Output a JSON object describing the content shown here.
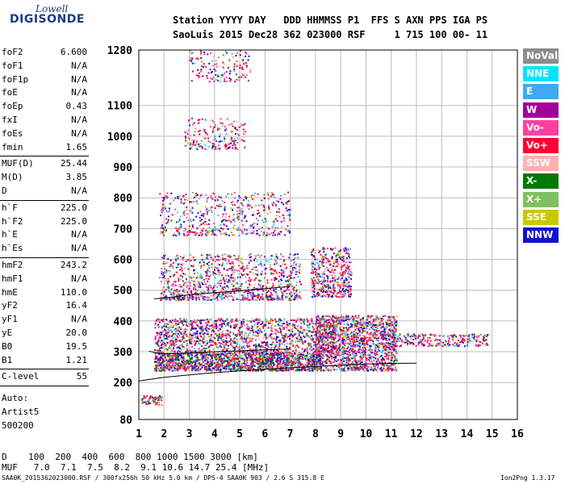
{
  "logo": {
    "line1": "Lowell",
    "line2": "DIGISONDE"
  },
  "header": {
    "row1": "Station YYYY DAY   DDD HHMMSS P1  FFS S AXN PPS IGA PS",
    "row2": "SaoLuis 2015 Dec28 362 023000 RSF     1 715 100 00- 11"
  },
  "params_a": [
    {
      "k": "foF2",
      "v": "6.600"
    },
    {
      "k": "foF1",
      "v": "N/A"
    },
    {
      "k": "foF1p",
      "v": "N/A"
    },
    {
      "k": "foE",
      "v": "N/A"
    },
    {
      "k": "foEp",
      "v": "0.43"
    },
    {
      "k": "fxI",
      "v": "N/A"
    },
    {
      "k": "foEs",
      "v": "N/A"
    },
    {
      "k": "fmin",
      "v": "1.65"
    }
  ],
  "params_b": [
    {
      "k": "MUF(D)",
      "v": "25.44"
    },
    {
      "k": "M(D)",
      "v": "3.85"
    },
    {
      "k": "D",
      "v": "N/A"
    }
  ],
  "params_c": [
    {
      "k": "h`F",
      "v": "225.0"
    },
    {
      "k": "h`F2",
      "v": "225.0"
    },
    {
      "k": "h`E",
      "v": "N/A"
    },
    {
      "k": "h`Es",
      "v": "N/A"
    }
  ],
  "params_d": [
    {
      "k": "hmF2",
      "v": "243.2"
    },
    {
      "k": "hmF1",
      "v": "N/A"
    },
    {
      "k": "hmE",
      "v": "110.0"
    },
    {
      "k": "yF2",
      "v": "16.4"
    },
    {
      "k": "yF1",
      "v": "N/A"
    },
    {
      "k": "yE",
      "v": "20.0"
    },
    {
      "k": "B0",
      "v": "19.5"
    },
    {
      "k": "B1",
      "v": "1.21"
    }
  ],
  "params_e": [
    {
      "k": "C-level",
      "v": "55"
    }
  ],
  "auto": [
    "Auto:",
    "Artist5",
    "500200"
  ],
  "legend": [
    {
      "label": "NoVal",
      "color": "#8c8c8c"
    },
    {
      "label": "NNE",
      "color": "#00e5ff"
    },
    {
      "label": "E",
      "color": "#3fa9f5"
    },
    {
      "label": "W",
      "color": "#a0009a"
    },
    {
      "label": "Vo-",
      "color": "#ff3fa0"
    },
    {
      "label": "Vo+",
      "color": "#ff0030"
    },
    {
      "label": "SSW",
      "color": "#ffb0b0"
    },
    {
      "label": "X-",
      "color": "#007a00"
    },
    {
      "label": "X+",
      "color": "#80c060"
    },
    {
      "label": "SSE",
      "color": "#c8c800"
    },
    {
      "label": "NNW",
      "color": "#1010d0"
    }
  ],
  "bottom": {
    "d_row": "D    100  200  400  600  800 1000 1500 3000 [km]",
    "muf_row": "MUF   7.0  7.1  7.5  8.2  9.1 10.6 14.7 25.4 [MHz]"
  },
  "footer": {
    "left": "SAA0K_2015362023000.RSF / 300fx256h 50 kHz 5.0 km / DPS-4 SAA0K 903 / 2.6 S 315.8 E",
    "right": "Ion2Png 1.3.17"
  },
  "chart_data": {
    "type": "scatter",
    "title": "",
    "xlabel": "",
    "ylabel": "",
    "xlim": [
      1,
      16
    ],
    "ylim": [
      80,
      1280
    ],
    "x_ticks": [
      1,
      2,
      3,
      4,
      5,
      6,
      7,
      8,
      9,
      10,
      11,
      12,
      13,
      14,
      15,
      16
    ],
    "y_ticks": [
      80,
      200,
      300,
      400,
      500,
      600,
      700,
      800,
      900,
      1000,
      1100,
      1280
    ],
    "grid": true,
    "legend_position": "right",
    "trace_curves": [
      {
        "name": "",
        "points": [
          [
            1,
            205
          ],
          [
            2,
            217
          ],
          [
            3,
            225
          ],
          [
            4,
            232
          ],
          [
            5,
            238
          ],
          [
            6,
            243
          ],
          [
            7,
            248
          ],
          [
            8,
            252
          ],
          [
            9,
            256
          ],
          [
            10,
            260
          ],
          [
            11,
            262
          ],
          [
            12,
            263
          ]
        ]
      },
      {
        "name": "",
        "points": [
          [
            1.4,
            302
          ],
          [
            1.7,
            296
          ],
          [
            2,
            293
          ],
          [
            3,
            296
          ],
          [
            4,
            300
          ],
          [
            5,
            303
          ],
          [
            6,
            306
          ],
          [
            7,
            309
          ]
        ]
      },
      {
        "name": "",
        "points": [
          [
            1.6,
            472
          ],
          [
            2,
            474
          ],
          [
            3,
            485
          ],
          [
            4,
            492
          ],
          [
            5,
            498
          ],
          [
            6,
            505
          ],
          [
            7,
            512
          ]
        ]
      }
    ],
    "echo_regions": [
      {
        "name": "F-layer trace",
        "x": [
          1.6,
          8.2
        ],
        "y": [
          240,
          300
        ],
        "density": 1600,
        "mode": "dense"
      },
      {
        "name": "Spread F core",
        "x": [
          1.6,
          8.8
        ],
        "y": [
          300,
          410
        ],
        "density": 1400,
        "mode": "spread"
      },
      {
        "name": "Spread F high freq",
        "x": [
          8,
          11.2
        ],
        "y": [
          240,
          420
        ],
        "density": 1500,
        "mode": "spread"
      },
      {
        "name": "Spread F tail",
        "x": [
          11,
          14.8
        ],
        "y": [
          320,
          360
        ],
        "density": 260,
        "mode": "spread"
      },
      {
        "name": "Second hop",
        "x": [
          1.8,
          7.4
        ],
        "y": [
          470,
          620
        ],
        "density": 1000,
        "mode": "sparse"
      },
      {
        "name": "Second hop right",
        "x": [
          7.8,
          9.4
        ],
        "y": [
          480,
          640
        ],
        "density": 450,
        "mode": "sparse"
      },
      {
        "name": "Third hop",
        "x": [
          1.8,
          7.0
        ],
        "y": [
          680,
          820
        ],
        "density": 500,
        "mode": "sparse"
      },
      {
        "name": "Fourth hop",
        "x": [
          2.8,
          5.2
        ],
        "y": [
          960,
          1060
        ],
        "density": 180,
        "mode": "sparse"
      },
      {
        "name": "Fifth hop",
        "x": [
          3.0,
          5.4
        ],
        "y": [
          1180,
          1280
        ],
        "density": 140,
        "mode": "sparse"
      },
      {
        "name": "Low echo",
        "x": [
          1.1,
          1.9
        ],
        "y": [
          130,
          160
        ],
        "density": 60,
        "mode": "dense"
      }
    ]
  }
}
